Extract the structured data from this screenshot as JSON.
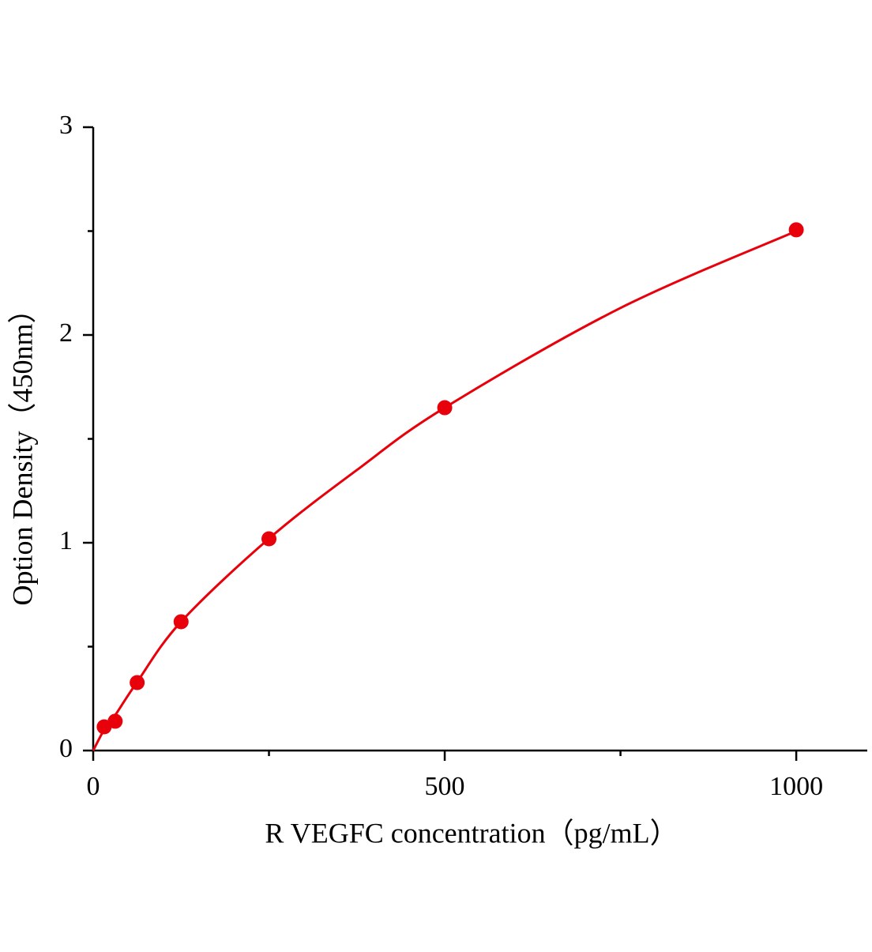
{
  "chart_data": {
    "type": "scatter",
    "x_label": "R VEGFC concentration（pg/mL）",
    "y_label": "Option Density（450nm）",
    "xlim": [
      0,
      1101
    ],
    "ylim": [
      0,
      3
    ],
    "xticks": [
      0,
      500,
      1000
    ],
    "xminorticks": [
      250,
      750
    ],
    "yticks": [
      0,
      1,
      2,
      3
    ],
    "yminorticks": [
      0.5,
      1.5,
      2.5
    ],
    "color": "#e8000b",
    "x": [
      15.6,
      31.25,
      62.5,
      125,
      250,
      500,
      1000
    ],
    "values": [
      0.114,
      0.141,
      0.327,
      0.62,
      1.019,
      1.65,
      2.506
    ],
    "fit": {
      "x": [
        0,
        15.6,
        31.25,
        62.5,
        125,
        250,
        375,
        500,
        750,
        1000
      ],
      "values": [
        0,
        0.1,
        0.17,
        0.33,
        0.62,
        1.02,
        1.35,
        1.65,
        2.13,
        2.5
      ]
    }
  }
}
